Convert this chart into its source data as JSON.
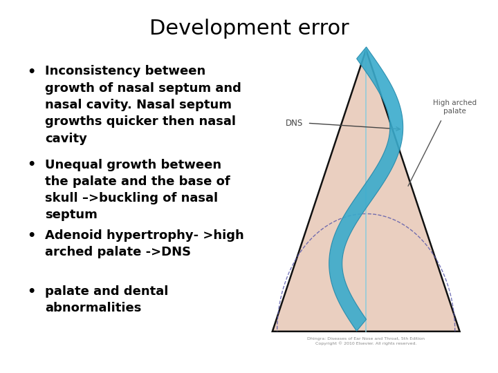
{
  "title": "Development error",
  "title_fontsize": 22,
  "background_color": "#ffffff",
  "bullet_points": [
    "Inconsistency between\ngrowth of nasal septum and\nnasal cavity. Nasal septum\ngrowths quicker then nasal\ncavity",
    "Unequal growth between\nthe palate and the base of\nskull –>buckling of nasal\nseptum",
    "Adenoid hypertrophy- >high\narched palate ->DNS",
    "palate and dental\nabnormalities"
  ],
  "bullet_fontsize": 13,
  "bullet_color": "#000000",
  "triangle_color": "#eacfc0",
  "triangle_edge_color": "#111111",
  "septum_color": "#3aabcc",
  "septum_edge_color": "#2288aa",
  "septum_line_color": "#88ccdd",
  "dns_label": "DNS",
  "high_arch_label": "High arched\npalate",
  "caption_line1": "Dhingra: Diseases of Ear Nose and Throat, 5th Edition",
  "caption_line2": "Copyright © 2010 Elsevier. All rights reserved."
}
